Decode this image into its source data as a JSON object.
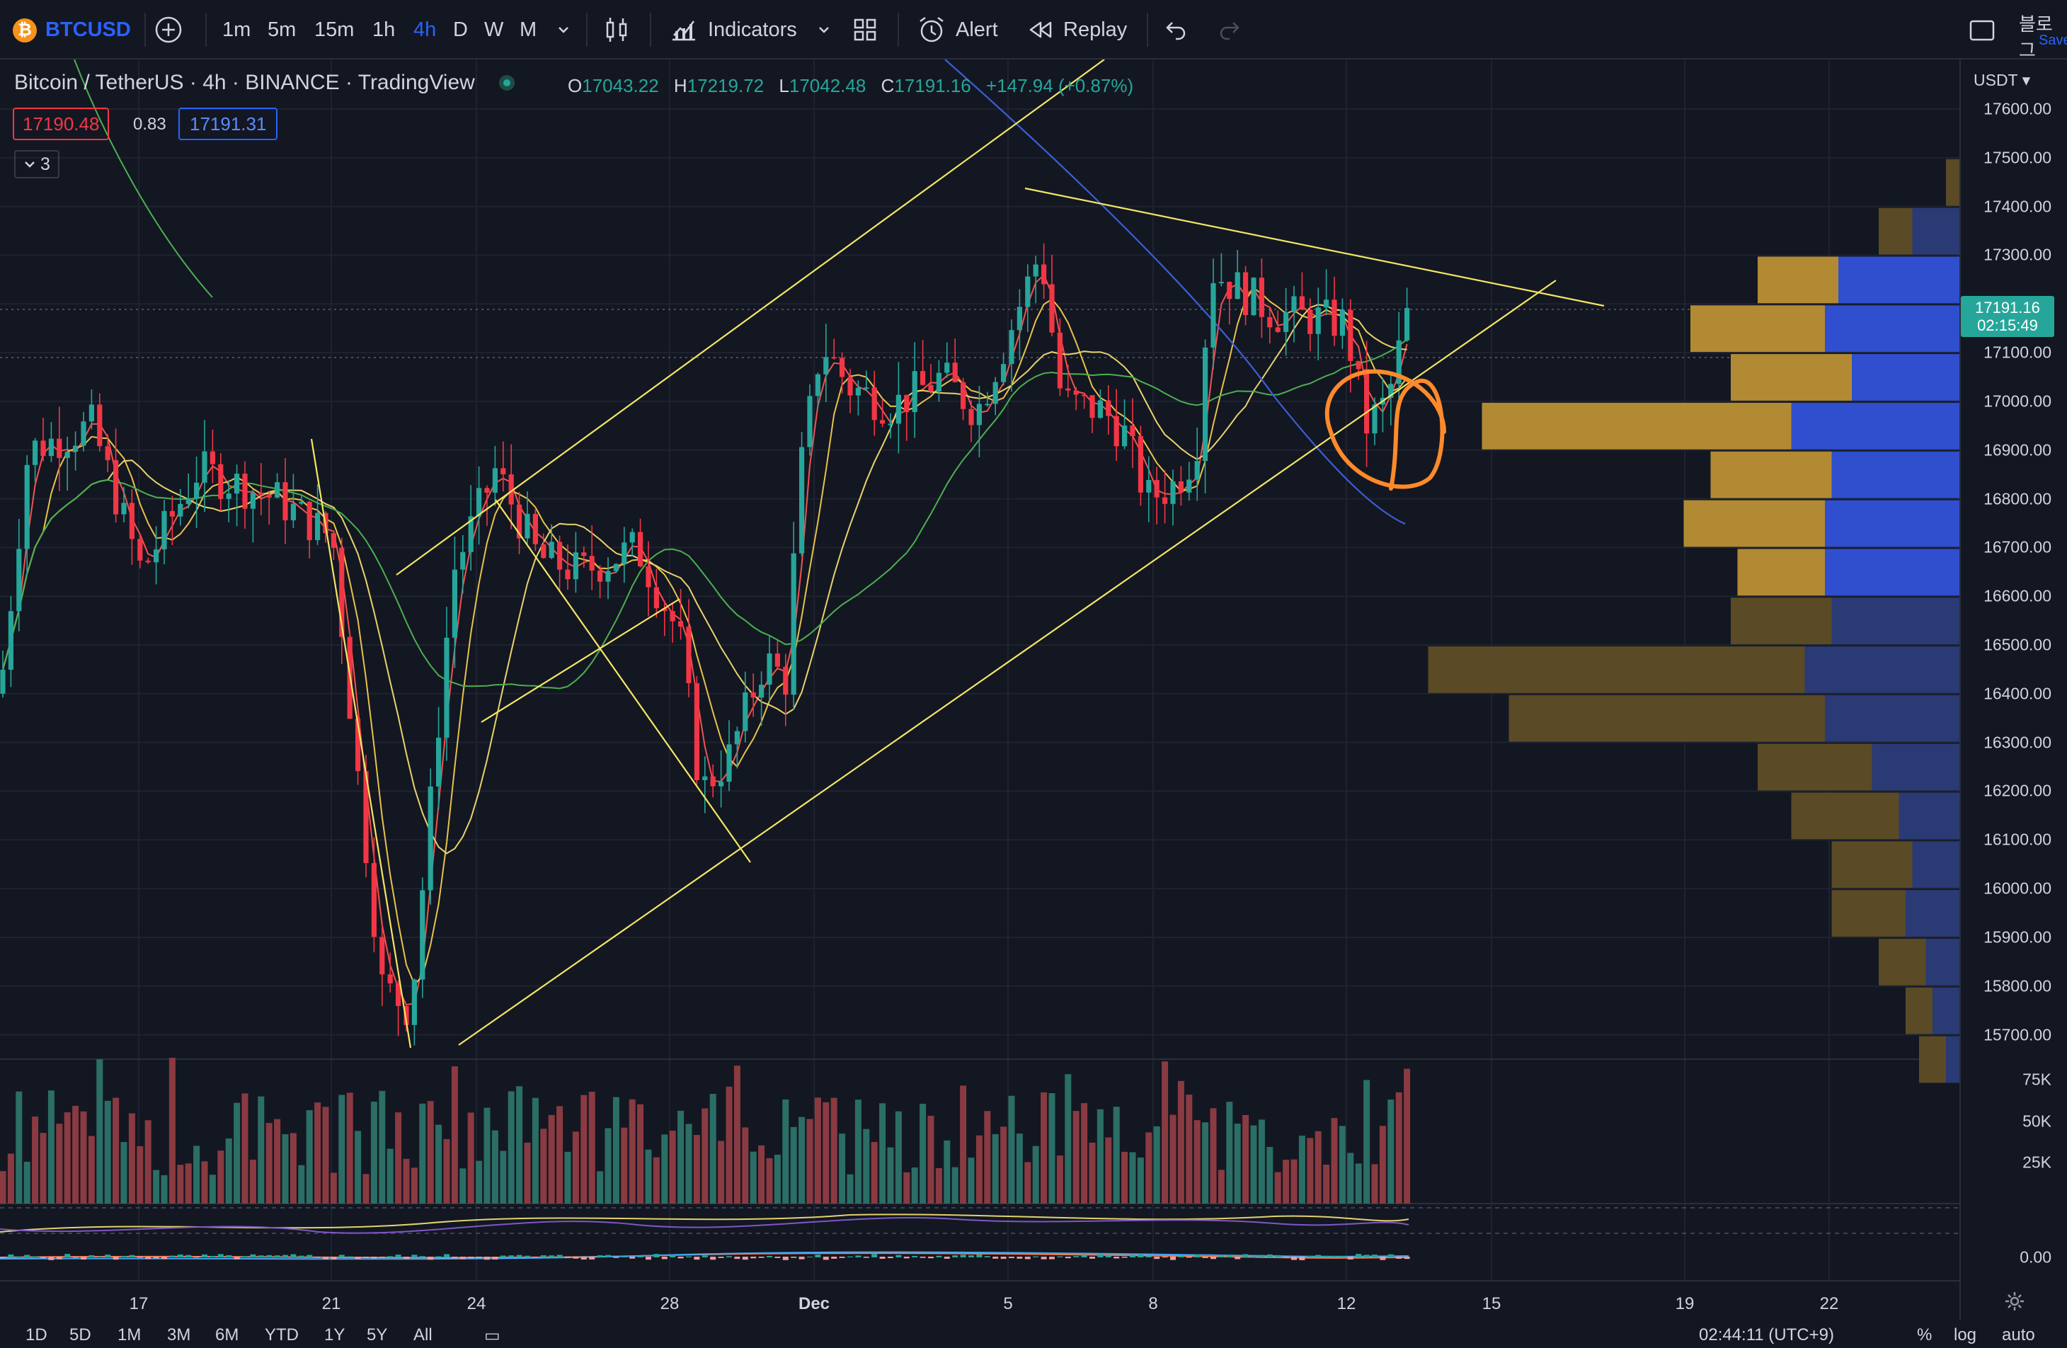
{
  "toolbar": {
    "symbol": "BTCUSD",
    "intervals": [
      "1m",
      "5m",
      "15m",
      "1h",
      "4h",
      "D",
      "W",
      "M"
    ],
    "active_interval": "4h",
    "indicators_label": "Indicators",
    "alert_label": "Alert",
    "replay_label": "Replay",
    "korean_label": "블로그",
    "save_label": "Save"
  },
  "legend": {
    "title": "Bitcoin / TetherUS · 4h · BINANCE · TradingView",
    "open_key": "O",
    "open": "17043.22",
    "high_key": "H",
    "high": "17219.72",
    "low_key": "L",
    "low": "17042.48",
    "close_key": "C",
    "close": "17191.16",
    "change": "+147.94 (+0.87%)",
    "bid": "17190.48",
    "spread": "0.83",
    "ask": "17191.31",
    "collapsed_count": "3"
  },
  "price_axis": {
    "currency": "USDT",
    "ticks": [
      "17600.00",
      "17500.00",
      "17400.00",
      "17300.00",
      "17200.00",
      "17100.00",
      "17000.00",
      "16900.00",
      "16800.00",
      "16700.00",
      "16600.00",
      "16500.00",
      "16400.00",
      "16300.00",
      "16200.00",
      "16100.00",
      "16000.00",
      "15900.00",
      "15800.00",
      "15700.00"
    ],
    "current_price": "17191.16",
    "countdown": "02:15:49",
    "volume_ticks": [
      "75K",
      "50K",
      "25K"
    ],
    "osc_tick": "0.00"
  },
  "time_axis": {
    "ticks": [
      "17",
      "21",
      "24",
      "28",
      "Dec",
      "5",
      "8",
      "12",
      "15",
      "19",
      "22"
    ]
  },
  "bottom_bar": {
    "ranges": [
      "1D",
      "5D",
      "1M",
      "3M",
      "6M",
      "YTD",
      "1Y",
      "5Y",
      "All"
    ],
    "clock": "02:44:11 (UTC+9)",
    "percent": "%",
    "log": "log",
    "auto": "auto"
  },
  "colors": {
    "background": "#131722",
    "up": "#26a69a",
    "down": "#f23645",
    "accent": "#2962ff",
    "trendline": "#f5e663",
    "annotation": "#ff8a2a"
  }
}
